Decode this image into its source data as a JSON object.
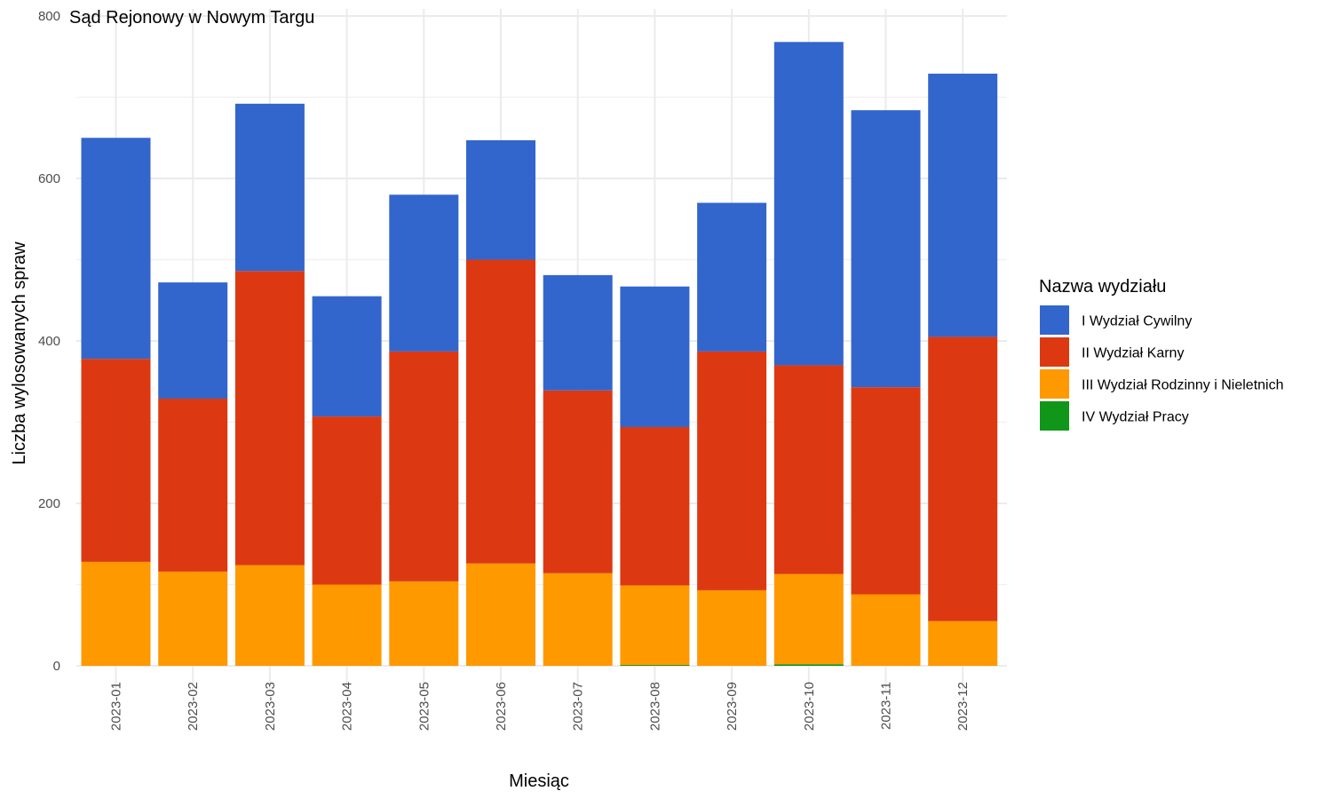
{
  "chart_data": {
    "type": "bar",
    "stacked": true,
    "title": "Sąd Rejonowy w Nowym Targu",
    "xlabel": "Miesiąc",
    "ylabel": "Liczba wylosowanych spraw",
    "ylim": [
      0,
      800
    ],
    "y_ticks": [
      0,
      200,
      400,
      600,
      800
    ],
    "grid": true,
    "legend_title": "Nazwa wydziału",
    "legend_position": "right",
    "categories": [
      "2023-01",
      "2023-02",
      "2023-03",
      "2023-04",
      "2023-05",
      "2023-06",
      "2023-07",
      "2023-08",
      "2023-09",
      "2023-10",
      "2023-11",
      "2023-12"
    ],
    "series": [
      {
        "name": "I Wydział Cywilny",
        "color": "#3366CC",
        "values": [
          272,
          143,
          206,
          148,
          193,
          147,
          142,
          173,
          183,
          398,
          341,
          324
        ]
      },
      {
        "name": "II Wydział Karny",
        "color": "#DC3912",
        "values": [
          250,
          213,
          362,
          207,
          283,
          374,
          225,
          195,
          294,
          257,
          255,
          350
        ]
      },
      {
        "name": "III Wydział Rodzinny i Nieletnich",
        "color": "#FF9900",
        "values": [
          128,
          116,
          124,
          100,
          104,
          126,
          114,
          98,
          93,
          111,
          88,
          55
        ]
      },
      {
        "name": "IV Wydział Pracy",
        "color": "#109618",
        "values": [
          0,
          0,
          0,
          0,
          0,
          0,
          0,
          1,
          0,
          2,
          0,
          0
        ]
      }
    ]
  }
}
